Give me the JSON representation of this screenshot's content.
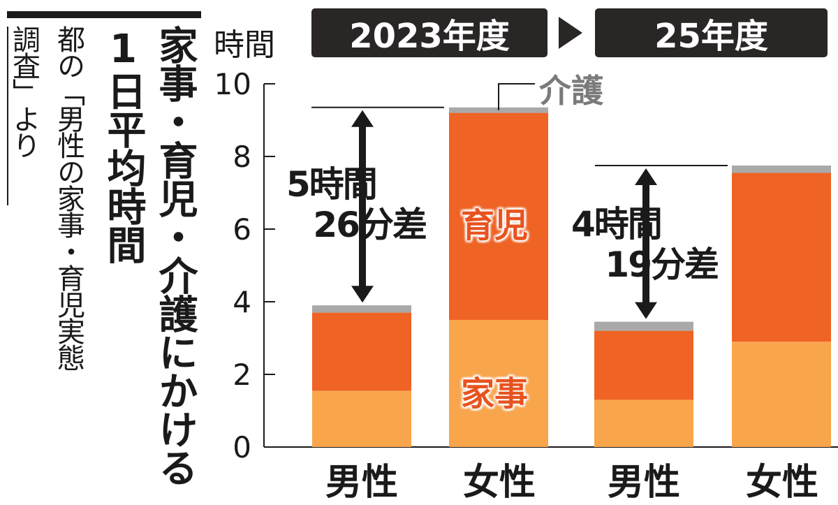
{
  "title": "家事・育児・介護にかける",
  "subtitle": "1日平均時間",
  "source_lines": [
    "都の「男性の家事・育児実態",
    "調査」より"
  ],
  "y_unit": "時間",
  "periods": [
    "2023年度",
    "25年度"
  ],
  "gap_labels": [
    {
      "line1": "5時間",
      "line2": "26分差"
    },
    {
      "line1": "4時間",
      "line2": "19分差"
    }
  ],
  "segment_labels": {
    "housework": "家事",
    "childcare": "育児",
    "care": "介護"
  },
  "colors": {
    "housework": "#f8a54c",
    "childcare": "#ef6325",
    "care": "#a9a9a9",
    "dark": "#1a1a1a"
  },
  "chart_data": {
    "type": "bar",
    "stacked": true,
    "categories": [
      "男性",
      "女性",
      "男性",
      "女性"
    ],
    "groups": [
      {
        "period": "2023年度",
        "categories": [
          "男性",
          "女性"
        ]
      },
      {
        "period": "25年度",
        "categories": [
          "男性",
          "女性"
        ]
      }
    ],
    "series": [
      {
        "name": "家事",
        "values": [
          1.55,
          3.5,
          1.3,
          2.9
        ]
      },
      {
        "name": "育児",
        "values": [
          2.15,
          5.7,
          1.9,
          4.65
        ]
      },
      {
        "name": "介護",
        "values": [
          0.2,
          0.15,
          0.25,
          0.2
        ]
      }
    ],
    "ylabel": "時間",
    "ylim": [
      0,
      10
    ],
    "yticks": [
      0,
      2,
      4,
      6,
      8,
      10
    ],
    "grid": false
  }
}
